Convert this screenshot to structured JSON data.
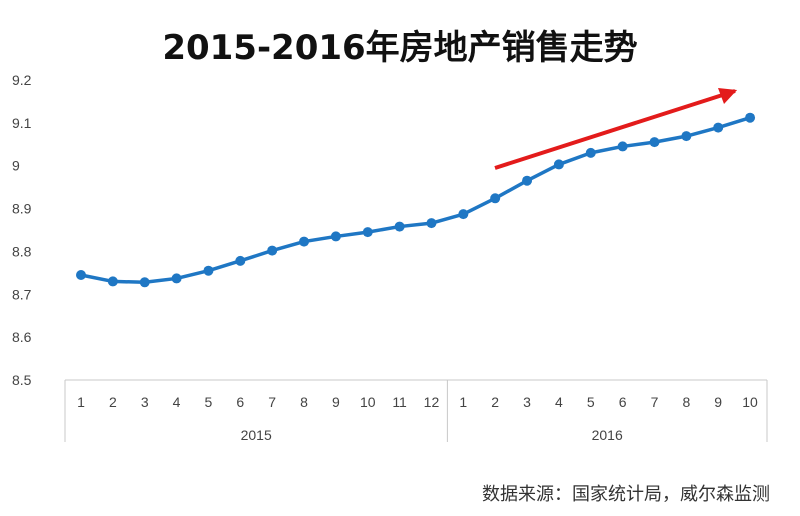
{
  "chart_data": {
    "type": "line",
    "title": "2015-2016年房地产销售走势",
    "xlabel": "",
    "ylabel": "",
    "ylim": [
      8.5,
      9.2
    ],
    "yticks": [
      "9.2",
      "9.1",
      "9",
      "8.9",
      "8.8",
      "8.7",
      "8.6",
      "8.5"
    ],
    "grid": false,
    "groups": [
      {
        "label": "2015",
        "categories": [
          "1",
          "2",
          "3",
          "4",
          "5",
          "6",
          "7",
          "8",
          "9",
          "10",
          "11",
          "12"
        ]
      },
      {
        "label": "2016",
        "categories": [
          "1",
          "2",
          "3",
          "4",
          "5",
          "6",
          "7",
          "8",
          "9",
          "10"
        ]
      }
    ],
    "series": [
      {
        "color": "#1f77c4",
        "values": [
          8.745,
          8.73,
          8.728,
          8.737,
          8.755,
          8.778,
          8.802,
          8.823,
          8.835,
          8.845,
          8.858,
          8.866,
          8.887,
          8.924,
          8.965,
          9.003,
          9.03,
          9.045,
          9.055,
          9.069,
          9.089,
          9.112
        ]
      }
    ],
    "annotation": {
      "type": "trend-arrow",
      "color": "#e31b1b"
    }
  },
  "source_note": "数据来源：国家统计局，威尔森监测"
}
